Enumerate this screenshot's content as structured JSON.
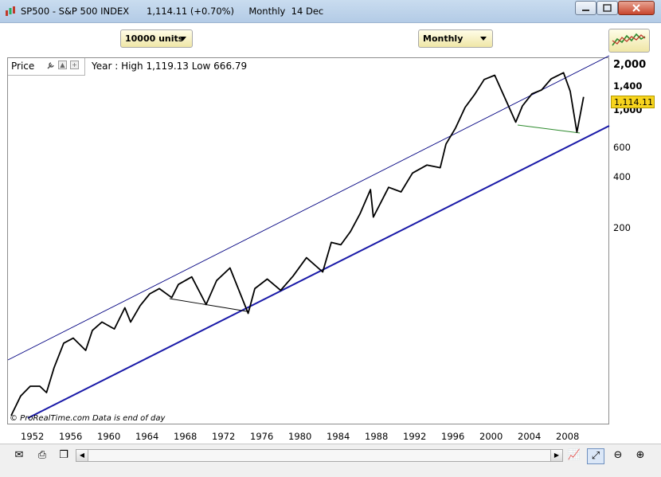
{
  "window": {
    "title": "SP500 - S&P 500 INDEX      1,114.11 (+0.70%)     Monthly  14 Dec"
  },
  "toolbar": {
    "units_dropdown": "10000 units",
    "period_dropdown": "Monthly"
  },
  "panel": {
    "price_label": "Price",
    "year_info": "Year : High 1,119.13 Low 666.79",
    "current_price": "1,114.11",
    "credit": "© ProRealTime.com   Data is end of day"
  },
  "colors": {
    "price_line": "#000000",
    "upper_channel": "#000080",
    "lower_channel": "#1a1aa8",
    "trend_2000s": "#2e8b2e",
    "trend_1970s": "#000000",
    "current_price_bg": "#f7d41d"
  },
  "chart_data": {
    "type": "line",
    "title": "SP500 - S&P 500 INDEX",
    "y_scale": "log",
    "y_ticks": [
      "2,000",
      "1,400",
      "1,000",
      "600",
      "400",
      "200"
    ],
    "x_ticks": [
      "1952",
      "1956",
      "1960",
      "1964",
      "1968",
      "1972",
      "1976",
      "1980",
      "1984",
      "1988",
      "1992",
      "1996",
      "2000",
      "2004",
      "2008"
    ],
    "series": [
      {
        "x": [
          1950.0,
          1951.0,
          1952.0,
          1953.0,
          1953.7,
          1954.5,
          1955.5,
          1956.5,
          1957.8,
          1958.5,
          1959.5,
          1960.8,
          1961.9,
          1962.5,
          1963.5,
          1964.5,
          1965.5,
          1966.8,
          1967.5,
          1968.9,
          1970.4,
          1971.5,
          1972.9,
          1974.8,
          1975.5,
          1976.8,
          1978.2,
          1979.5,
          1980.9,
          1982.6,
          1983.5,
          1984.5,
          1985.5,
          1986.5,
          1987.6,
          1987.9,
          1989.5,
          1990.8,
          1992.0,
          1993.5,
          1994.9,
          1995.5,
          1996.5,
          1997.5,
          1998.5,
          1999.5,
          2000.6,
          2001.5,
          2002.8,
          2003.5,
          2004.5,
          2005.5,
          2006.5,
          2007.8,
          2008.5,
          2009.2,
          2009.9
        ],
        "y": [
          17,
          22,
          25,
          25,
          23,
          32,
          44,
          47,
          40,
          52,
          58,
          53,
          70,
          58,
          72,
          84,
          90,
          80,
          95,
          105,
          73,
          100,
          118,
          65,
          90,
          102,
          88,
          106,
          135,
          112,
          165,
          160,
          190,
          240,
          330,
          230,
          340,
          320,
          410,
          455,
          440,
          600,
          740,
          970,
          1150,
          1400,
          1480,
          1150,
          800,
          990,
          1160,
          1220,
          1410,
          1530,
          1200,
          700,
          1114.11
        ]
      }
    ],
    "annotations": [
      "upper trend channel line",
      "lower trend channel line",
      "support line 1966-1974",
      "support line 2002-2009"
    ]
  }
}
